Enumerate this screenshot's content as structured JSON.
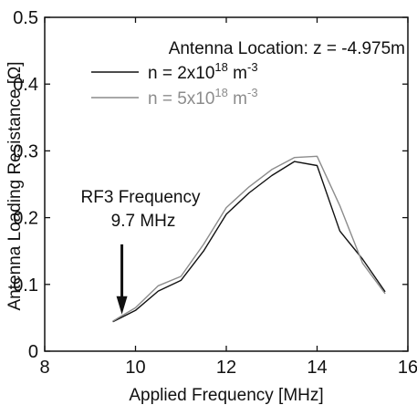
{
  "chart_data": {
    "type": "line",
    "xlabel": "Applied Frequency [MHz]",
    "ylabel": "Antenna Loading Resistance [Ω]",
    "xlim": [
      8,
      16
    ],
    "ylim": [
      0,
      0.5
    ],
    "xticks": [
      8,
      10,
      12,
      14,
      16
    ],
    "yticks": [
      0,
      0.1,
      0.2,
      0.3,
      0.4,
      0.5
    ],
    "x_tick_labels": [
      "8",
      "10",
      "12",
      "14",
      "16"
    ],
    "y_tick_labels": [
      "0",
      "0.1",
      "0.2",
      "0.3",
      "0.4",
      "0.5"
    ],
    "grid": false,
    "legend_position": "upper-left",
    "x": [
      9.5,
      10.0,
      10.5,
      11.0,
      11.5,
      12.0,
      12.5,
      13.0,
      13.5,
      14.0,
      14.5,
      15.0,
      15.5
    ],
    "series": [
      {
        "legend_prefix": "n = 2x10",
        "legend_exp": "18",
        "legend_unit": " m",
        "legend_unit_exp": "-3",
        "color": "#111111",
        "values": [
          0.044,
          0.061,
          0.09,
          0.106,
          0.15,
          0.205,
          0.237,
          0.263,
          0.284,
          0.278,
          0.18,
          0.138,
          0.089
        ]
      },
      {
        "legend_prefix": "n = 5x10",
        "legend_exp": "18",
        "legend_unit": " m",
        "legend_unit_exp": "-3",
        "color": "#8c8c8c",
        "values": [
          0.045,
          0.065,
          0.098,
          0.112,
          0.16,
          0.215,
          0.246,
          0.272,
          0.29,
          0.292,
          0.218,
          0.132,
          0.086
        ]
      }
    ],
    "annotations": {
      "location": "Antenna Location: z = -4.975m",
      "marker_line1": "RF3 Frequency",
      "marker_line2": "9.7 MHz",
      "arrow_x": 9.7,
      "arrow_y_start": 0.16,
      "arrow_y_end": 0.055
    }
  }
}
